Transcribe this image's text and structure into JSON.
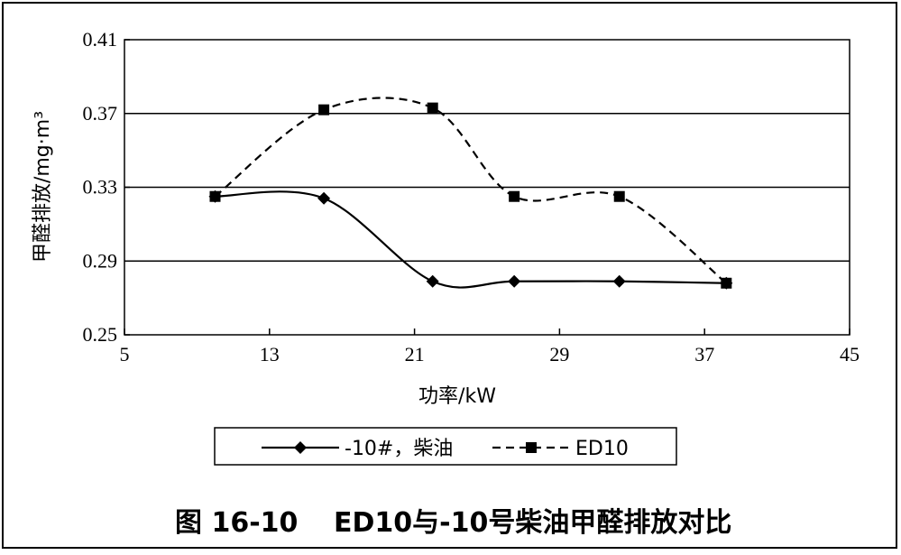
{
  "chart_data": {
    "type": "line",
    "title": "",
    "caption": {
      "label": "图 16-10",
      "text": "ED10与-10号柴油甲醛排放对比"
    },
    "xlabel": "功率/kW",
    "ylabel": "甲醛排放/mg·m³",
    "xlim": [
      5,
      45
    ],
    "ylim": [
      0.25,
      0.41
    ],
    "x_ticks": [
      "5",
      "13",
      "21",
      "29",
      "37",
      "45"
    ],
    "y_ticks": [
      "0.25",
      "0.29",
      "0.33",
      "0.37",
      "0.41"
    ],
    "grid": "horizontal",
    "legend_position": "bottom",
    "series": [
      {
        "name": "-10#，柴油",
        "marker": "diamond",
        "line_style": "solid",
        "color": "#000000",
        "points": [
          [
            10,
            0.325
          ],
          [
            16,
            0.324
          ],
          [
            22,
            0.279
          ],
          [
            26.5,
            0.279
          ],
          [
            32.3,
            0.279
          ],
          [
            38.2,
            0.278
          ]
        ]
      },
      {
        "name": "ED10",
        "marker": "square",
        "line_style": "dashed",
        "color": "#000000",
        "points": [
          [
            10,
            0.325
          ],
          [
            16,
            0.372
          ],
          [
            22,
            0.373
          ],
          [
            26.5,
            0.325
          ],
          [
            32.3,
            0.325
          ],
          [
            38.2,
            0.278
          ]
        ]
      }
    ]
  }
}
